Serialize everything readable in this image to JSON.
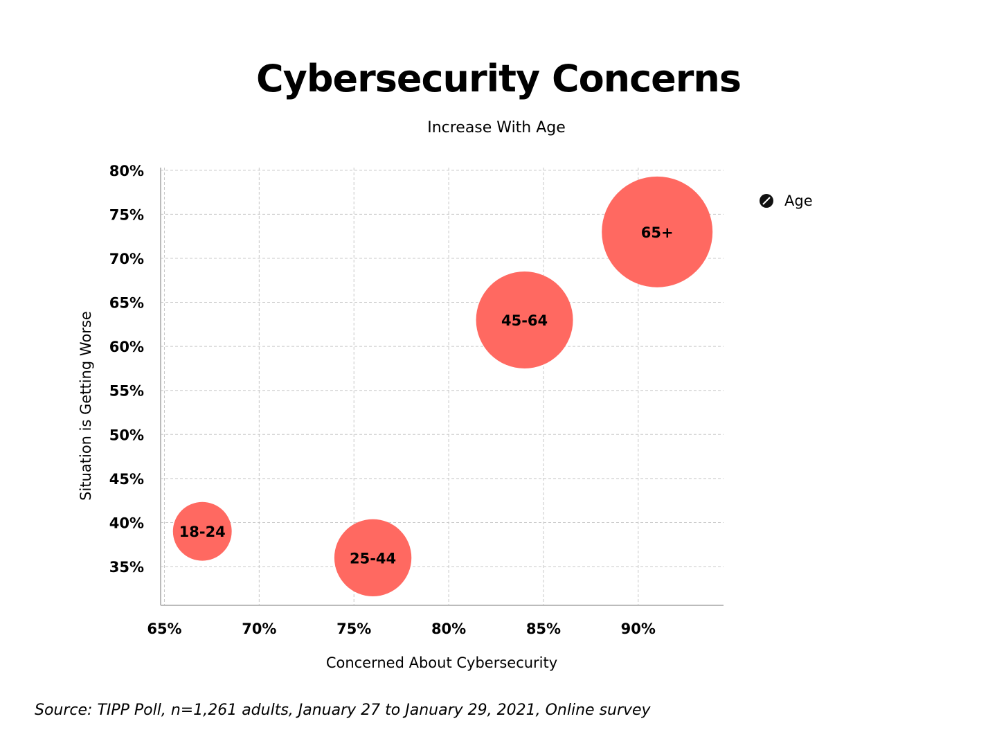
{
  "chart_data": {
    "type": "scatter",
    "subtype": "bubble",
    "title": "Cybersecurity Concerns",
    "subtitle": "Increase With Age",
    "xlabel": "Concerned About Cybersecurity",
    "ylabel": "Situation is Getting Worse",
    "xlim": [
      64.8,
      94.5
    ],
    "ylim": [
      30.6,
      80.3
    ],
    "xticks": [
      "65%",
      "70%",
      "75%",
      "80%",
      "85%",
      "90%"
    ],
    "xtick_values": [
      65,
      70,
      75,
      80,
      85,
      90
    ],
    "yticks": [
      "35%",
      "40%",
      "45%",
      "50%",
      "55%",
      "60%",
      "65%",
      "70%",
      "75%",
      "80%"
    ],
    "ytick_values": [
      35,
      40,
      45,
      50,
      55,
      60,
      65,
      70,
      75,
      80
    ],
    "grid": true,
    "legend": {
      "position": "right",
      "entries": [
        "Age"
      ],
      "icon": "arrows-diagonal-icon"
    },
    "bubble_color": "#ff6961",
    "series": [
      {
        "name": "Age",
        "points": [
          {
            "label": "18-24",
            "x": 67,
            "y": 39,
            "size": 18
          },
          {
            "label": "25-44",
            "x": 76,
            "y": 36,
            "size": 31
          },
          {
            "label": "45-64",
            "x": 84,
            "y": 63,
            "size": 49
          },
          {
            "label": "65+",
            "x": 91,
            "y": 73,
            "size": 64
          }
        ]
      }
    ]
  },
  "source": "Source:  TIPP Poll,  n=1,261 adults, January 27 to January 29, 2021, Online survey"
}
